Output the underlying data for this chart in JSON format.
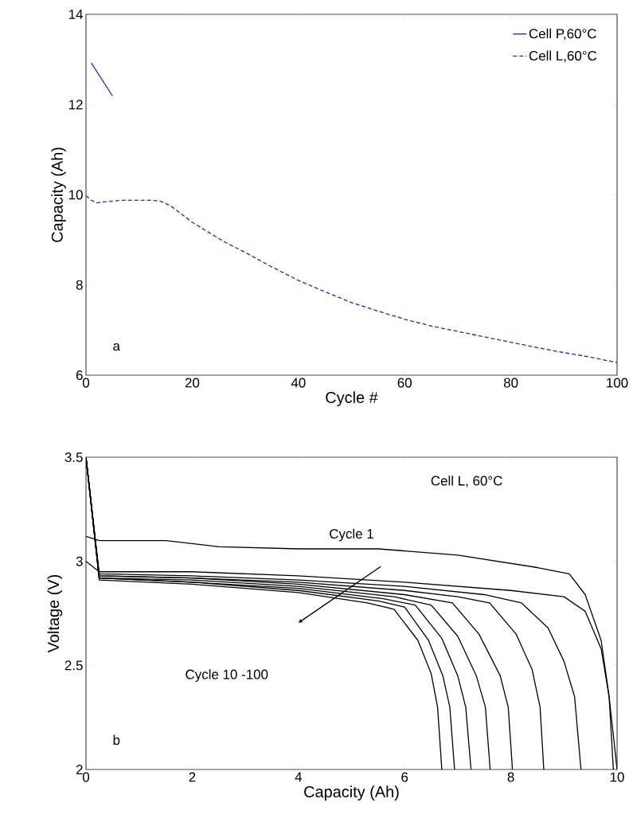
{
  "chart_data": [
    {
      "type": "line",
      "xlabel": "Cycle #",
      "ylabel": "Capacity (Ah)",
      "xlim": [
        0,
        100
      ],
      "ylim": [
        6,
        14
      ],
      "xticks": [
        0,
        20,
        40,
        60,
        80,
        100
      ],
      "yticks": [
        6,
        8,
        10,
        12,
        14
      ],
      "grid": false,
      "legend": "top right",
      "annotations": [
        "a"
      ],
      "series": [
        {
          "name": "Cell P,60°C",
          "color": "#2020dd",
          "line_style": "solid",
          "x": [
            1,
            5
          ],
          "values": [
            12.92,
            12.19
          ]
        },
        {
          "name": "Cell L,60°C",
          "color": "#2020dd",
          "line_style": "dashed",
          "x": [
            0,
            1,
            2,
            4,
            7,
            12,
            14,
            16,
            20,
            26,
            30,
            35,
            40,
            45,
            50,
            55,
            60,
            65,
            70,
            75,
            80,
            85,
            90,
            95,
            100
          ],
          "values": [
            9.98,
            9.88,
            9.82,
            9.85,
            9.88,
            9.88,
            9.86,
            9.75,
            9.39,
            8.96,
            8.72,
            8.4,
            8.1,
            7.85,
            7.61,
            7.42,
            7.24,
            7.09,
            6.97,
            6.85,
            6.73,
            6.61,
            6.5,
            6.4,
            6.28
          ]
        }
      ]
    },
    {
      "type": "line",
      "xlabel": "Capacity (Ah)",
      "ylabel": "Voltage (V)",
      "xlim": [
        0,
        10
      ],
      "ylim": [
        2,
        3.5
      ],
      "xticks": [
        0,
        2,
        4,
        6,
        8,
        10
      ],
      "yticks": [
        2,
        2.5,
        3,
        3.5
      ],
      "grid": false,
      "annotations": [
        "Cell L, 60°C",
        {
          "text": "Cycle 1",
          "x": 5.0,
          "y": 3.06
        },
        "Cycle 10 -100",
        "b"
      ],
      "series": [
        {
          "color": "#000000",
          "x": [
            0,
            0.25,
            1.5,
            2.5,
            4,
            5.5,
            7,
            8.5,
            9.1,
            9.4,
            9.7,
            9.85,
            10.0
          ],
          "values": [
            3.12,
            3.1,
            3.1,
            3.07,
            3.06,
            3.06,
            3.03,
            2.97,
            2.94,
            2.84,
            2.62,
            2.35,
            2.0
          ]
        },
        {
          "color": "#000000",
          "x": [
            0,
            0.25,
            2,
            4,
            6,
            8,
            9,
            9.4,
            9.7,
            9.85,
            9.93
          ],
          "values": [
            3.0,
            2.95,
            2.95,
            2.93,
            2.9,
            2.86,
            2.83,
            2.76,
            2.58,
            2.35,
            2.0
          ]
        },
        {
          "color": "#000000",
          "x": [
            0,
            0.25,
            2,
            4,
            6,
            7.5,
            8.2,
            8.7,
            9.0,
            9.2,
            9.32
          ],
          "values": [
            3.5,
            2.94,
            2.93,
            2.91,
            2.88,
            2.84,
            2.8,
            2.68,
            2.52,
            2.35,
            2.0
          ]
        },
        {
          "color": "#000000",
          "x": [
            0,
            0.25,
            2,
            4,
            6,
            7.0,
            7.6,
            8.1,
            8.4,
            8.55,
            8.62
          ],
          "values": [
            3.5,
            2.93,
            2.92,
            2.9,
            2.86,
            2.83,
            2.8,
            2.65,
            2.48,
            2.3,
            2.0
          ]
        },
        {
          "color": "#000000",
          "x": [
            0,
            0.25,
            2,
            4,
            6,
            6.9,
            7.4,
            7.8,
            7.95,
            8.03
          ],
          "values": [
            3.5,
            2.93,
            2.92,
            2.89,
            2.84,
            2.8,
            2.65,
            2.45,
            2.3,
            2.0
          ]
        },
        {
          "color": "#000000",
          "x": [
            0,
            0.25,
            2,
            4,
            5.8,
            6.5,
            7.0,
            7.35,
            7.52,
            7.61
          ],
          "values": [
            3.5,
            2.92,
            2.91,
            2.88,
            2.83,
            2.79,
            2.64,
            2.45,
            2.3,
            2.0
          ]
        },
        {
          "color": "#000000",
          "x": [
            0,
            0.25,
            2,
            4,
            5.6,
            6.2,
            6.7,
            7.0,
            7.15,
            7.25
          ],
          "values": [
            3.5,
            2.92,
            2.9,
            2.87,
            2.82,
            2.79,
            2.63,
            2.45,
            2.3,
            2.0
          ]
        },
        {
          "color": "#000000",
          "x": [
            0,
            0.25,
            2,
            4,
            5.5,
            6.0,
            6.45,
            6.72,
            6.85,
            6.94
          ],
          "values": [
            3.5,
            2.92,
            2.9,
            2.86,
            2.81,
            2.78,
            2.62,
            2.45,
            2.3,
            2.0
          ]
        },
        {
          "color": "#000000",
          "x": [
            0,
            0.25,
            2,
            4,
            5.3,
            5.8,
            6.25,
            6.5,
            6.62,
            6.7
          ],
          "values": [
            3.5,
            2.91,
            2.89,
            2.85,
            2.8,
            2.77,
            2.62,
            2.46,
            2.3,
            2.0
          ]
        }
      ]
    }
  ]
}
